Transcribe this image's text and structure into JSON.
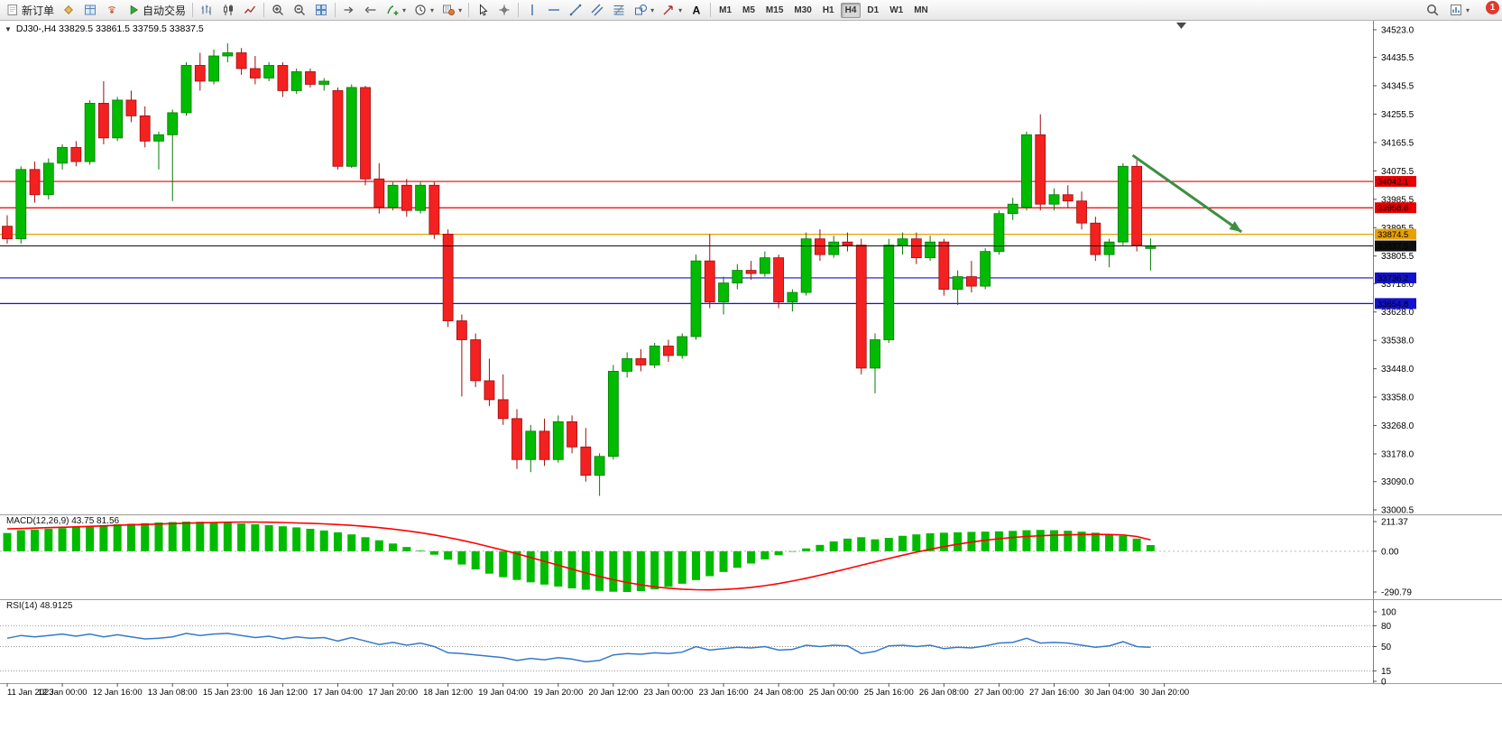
{
  "toolbar": {
    "notification_badge": "1",
    "timeframes": [
      "M1",
      "M5",
      "M15",
      "M30",
      "H1",
      "H4",
      "D1",
      "W1",
      "MN"
    ],
    "active_timeframe": "H4",
    "items": [
      {
        "name": "new-order-button",
        "icon": "doc",
        "label": "新订单"
      },
      {
        "name": "market-depth-button",
        "icon": "gold"
      },
      {
        "name": "market-watch-button",
        "icon": "gridblue"
      },
      {
        "name": "signals-button",
        "icon": "signal"
      },
      {
        "name": "autotrading-button",
        "icon": "play",
        "label": "自动交易"
      },
      {
        "type": "sep"
      },
      {
        "name": "bar-chart-button",
        "icon": "bars"
      },
      {
        "name": "candlestick-chart-button",
        "icon": "candles"
      },
      {
        "name": "line-chart-button",
        "icon": "linec"
      },
      {
        "type": "sep"
      },
      {
        "name": "zoom-in-button",
        "icon": "zoomin"
      },
      {
        "name": "zoom-out-button",
        "icon": "zoomout"
      },
      {
        "name": "tile-windows-button",
        "icon": "tile"
      },
      {
        "type": "sep"
      },
      {
        "name": "auto-scroll-button",
        "icon": "autoscroll"
      },
      {
        "name": "chart-shift-button",
        "icon": "shift"
      },
      {
        "name": "indicators-button",
        "icon": "findicator",
        "caret": true
      },
      {
        "name": "periods-button",
        "icon": "clock",
        "caret": true
      },
      {
        "name": "templates-button",
        "icon": "template",
        "caret": true
      },
      {
        "type": "sep"
      },
      {
        "name": "cursor-button",
        "icon": "cursor"
      },
      {
        "name": "crosshair-button",
        "icon": "cross"
      },
      {
        "type": "sep"
      },
      {
        "name": "vertical-line-button",
        "icon": "vline"
      },
      {
        "name": "horizontal-line-button",
        "icon": "hline"
      },
      {
        "name": "trendline-button",
        "icon": "tline"
      },
      {
        "name": "equidistant-channel-button",
        "icon": "channel"
      },
      {
        "name": "fibonacci-button",
        "icon": "fibo"
      },
      {
        "name": "shapes-button",
        "icon": "shapes",
        "caret": true
      },
      {
        "name": "arrows-button",
        "icon": "arrow",
        "caret": true
      },
      {
        "name": "text-label-button",
        "icon": "textA"
      },
      {
        "type": "sep"
      }
    ],
    "right_items": [
      {
        "name": "search-button",
        "icon": "search"
      },
      {
        "name": "new-chart-button",
        "icon": "newchart",
        "caret": true
      }
    ]
  },
  "chart": {
    "title": "DJ30-,H4 33829.5 33861.5 33759.5 33837.5",
    "price_axis_labels": [
      "34523.0",
      "34435.5",
      "34345.5",
      "34255.5",
      "34165.5",
      "34075.5",
      "33985.5",
      "33895.5",
      "33805.5",
      "33718.0",
      "33628.0",
      "33538.0",
      "33448.0",
      "33358.0",
      "33268.0",
      "33178.0",
      "33090.0",
      "33000.5"
    ],
    "levels": [
      {
        "value": 34042.1,
        "badge": "34042.1",
        "color": "#e60000"
      },
      {
        "value": 33958.6,
        "badge": "33958.6",
        "color": "#e60000"
      },
      {
        "value": 33874.5,
        "badge": "33874.5",
        "color": "#e8a000"
      },
      {
        "value": 33736.2,
        "badge": "33736.2",
        "color": "#1212cc"
      },
      {
        "value": 33654.8,
        "badge": "33654.8",
        "color": "#1212cc"
      }
    ],
    "current_price": {
      "value": 33837.5,
      "badge": "33837.5",
      "color": "#101010"
    },
    "annotation_arrow": {
      "color": "#3e8e41",
      "from_index": 81.7,
      "from_price": 34125,
      "to_index": 89.6,
      "to_price": 33882
    }
  },
  "chart_data": {
    "type": "candlestick",
    "symbol": "DJ30-",
    "timeframe": "H4",
    "price_range": [
      33000.5,
      34523.0
    ],
    "up_color": "#00bb00",
    "up_stroke": "#057a05",
    "down_color": "#f42121",
    "down_stroke": "#9e0d0d",
    "x_label_step": 4,
    "x_labels": [
      "11 Jan 2023",
      "12 Jan 00:00",
      "12 Jan 16:00",
      "13 Jan 08:00",
      "15 Jan 23:00",
      "16 Jan 12:00",
      "17 Jan 04:00",
      "17 Jan 20:00",
      "18 Jan 12:00",
      "19 Jan 04:00",
      "19 Jan 20:00",
      "20 Jan 12:00",
      "23 Jan 00:00",
      "23 Jan 16:00",
      "24 Jan 08:00",
      "25 Jan 00:00",
      "25 Jan 16:00",
      "26 Jan 08:00",
      "27 Jan 00:00",
      "27 Jan 16:00",
      "30 Jan 04:00",
      "30 Jan 20:00"
    ],
    "candles": [
      [
        33900,
        33935,
        33845,
        33860
      ],
      [
        33860,
        34090,
        33845,
        34080
      ],
      [
        34080,
        34105,
        33975,
        34000
      ],
      [
        34000,
        34115,
        33985,
        34100
      ],
      [
        34100,
        34160,
        34080,
        34150
      ],
      [
        34150,
        34170,
        34090,
        34105
      ],
      [
        34105,
        34300,
        34095,
        34290
      ],
      [
        34290,
        34360,
        34160,
        34180
      ],
      [
        34180,
        34310,
        34170,
        34300
      ],
      [
        34300,
        34330,
        34230,
        34250
      ],
      [
        34250,
        34280,
        34150,
        34170
      ],
      [
        34170,
        34200,
        34080,
        34190
      ],
      [
        34190,
        34270,
        33980,
        34260
      ],
      [
        34260,
        34420,
        34250,
        34410
      ],
      [
        34410,
        34450,
        34330,
        34360
      ],
      [
        34360,
        34460,
        34350,
        34440
      ],
      [
        34440,
        34480,
        34420,
        34450
      ],
      [
        34450,
        34465,
        34380,
        34400
      ],
      [
        34400,
        34440,
        34350,
        34370
      ],
      [
        34370,
        34420,
        34360,
        34410
      ],
      [
        34410,
        34420,
        34310,
        34330
      ],
      [
        34330,
        34400,
        34320,
        34390
      ],
      [
        34390,
        34400,
        34340,
        34350
      ],
      [
        34350,
        34370,
        34330,
        34360
      ],
      [
        34330,
        34340,
        34080,
        34090
      ],
      [
        34090,
        34350,
        34085,
        34340
      ],
      [
        34340,
        34345,
        34030,
        34050
      ],
      [
        34050,
        34100,
        33940,
        33960
      ],
      [
        33960,
        34040,
        33950,
        34030
      ],
      [
        34030,
        34050,
        33930,
        33950
      ],
      [
        33950,
        34040,
        33940,
        34030
      ],
      [
        34030,
        34040,
        33860,
        33875
      ],
      [
        33875,
        33890,
        33580,
        33600
      ],
      [
        33600,
        33620,
        33360,
        33540
      ],
      [
        33540,
        33560,
        33390,
        33410
      ],
      [
        33410,
        33480,
        33330,
        33350
      ],
      [
        33350,
        33430,
        33270,
        33290
      ],
      [
        33290,
        33320,
        33130,
        33160
      ],
      [
        33160,
        33270,
        33120,
        33250
      ],
      [
        33250,
        33290,
        33140,
        33160
      ],
      [
        33160,
        33300,
        33150,
        33280
      ],
      [
        33280,
        33300,
        33180,
        33200
      ],
      [
        33200,
        33260,
        33090,
        33110
      ],
      [
        33110,
        33180,
        33045,
        33170
      ],
      [
        33170,
        33460,
        33160,
        33440
      ],
      [
        33440,
        33500,
        33420,
        33480
      ],
      [
        33480,
        33510,
        33440,
        33460
      ],
      [
        33460,
        33530,
        33450,
        33520
      ],
      [
        33520,
        33540,
        33470,
        33490
      ],
      [
        33490,
        33560,
        33480,
        33550
      ],
      [
        33550,
        33810,
        33540,
        33790
      ],
      [
        33790,
        33875,
        33640,
        33660
      ],
      [
        33660,
        33740,
        33620,
        33720
      ],
      [
        33720,
        33780,
        33700,
        33760
      ],
      [
        33760,
        33790,
        33730,
        33750
      ],
      [
        33750,
        33820,
        33740,
        33800
      ],
      [
        33800,
        33810,
        33640,
        33660
      ],
      [
        33660,
        33700,
        33630,
        33690
      ],
      [
        33690,
        33880,
        33680,
        33860
      ],
      [
        33860,
        33890,
        33790,
        33810
      ],
      [
        33810,
        33870,
        33800,
        33850
      ],
      [
        33850,
        33880,
        33820,
        33840
      ],
      [
        33840,
        33860,
        33430,
        33450
      ],
      [
        33450,
        33560,
        33370,
        33540
      ],
      [
        33540,
        33860,
        33530,
        33840
      ],
      [
        33840,
        33880,
        33810,
        33860
      ],
      [
        33860,
        33880,
        33780,
        33800
      ],
      [
        33800,
        33870,
        33790,
        33850
      ],
      [
        33850,
        33860,
        33680,
        33700
      ],
      [
        33700,
        33760,
        33650,
        33740
      ],
      [
        33740,
        33790,
        33690,
        33710
      ],
      [
        33710,
        33830,
        33700,
        33820
      ],
      [
        33820,
        33950,
        33810,
        33940
      ],
      [
        33940,
        33990,
        33920,
        33970
      ],
      [
        33960,
        34200,
        33950,
        34190
      ],
      [
        34190,
        34255,
        33950,
        33970
      ],
      [
        33970,
        34020,
        33950,
        34000
      ],
      [
        34000,
        34030,
        33960,
        33980
      ],
      [
        33980,
        34010,
        33890,
        33910
      ],
      [
        33910,
        33930,
        33790,
        33810
      ],
      [
        33810,
        33860,
        33770,
        33850
      ],
      [
        33850,
        34100,
        33840,
        34090
      ],
      [
        34090,
        34110,
        33820,
        33840
      ],
      [
        33829.5,
        33861.5,
        33759.5,
        33837.5
      ]
    ],
    "indicators": [
      {
        "name": "MACD",
        "label": "MACD(12,26,9) 43.75 81.56",
        "axis": [
          "211.37",
          "0.00",
          "-290.79"
        ],
        "histogram_color": "#00bb00",
        "signal_color": "#ff0000",
        "histogram": [
          130,
          150,
          155,
          160,
          165,
          170,
          178,
          185,
          192,
          196,
          200,
          205,
          208,
          211.37,
          210,
          207,
          203,
          198,
          192,
          186,
          178,
          170,
          160,
          148,
          135,
          120,
          100,
          78,
          55,
          30,
          5,
          -25,
          -60,
          -95,
          -130,
          -160,
          -185,
          -205,
          -222,
          -238,
          -252,
          -265,
          -275,
          -283,
          -289,
          -290.79,
          -285,
          -272,
          -254,
          -232,
          -206,
          -178,
          -148,
          -118,
          -88,
          -58,
          -28,
          -2,
          20,
          45,
          70,
          90,
          100,
          85,
          95,
          110,
          120,
          128,
          132,
          135,
          138,
          140,
          142,
          145,
          150,
          152,
          150,
          146,
          140,
          132,
          122,
          110,
          90,
          43.75
        ],
        "signal": [
          160,
          162,
          165,
          168,
          171,
          174,
          177,
          181,
          185,
          188,
          191,
          194,
          197,
          200,
          203,
          205,
          207,
          208,
          208,
          207,
          205,
          202,
          199,
          195,
          190,
          184,
          177,
          168,
          158,
          146,
          132,
          116,
          98,
          78,
          56,
          32,
          8,
          -18,
          -45,
          -72,
          -100,
          -128,
          -155,
          -180,
          -203,
          -223,
          -240,
          -254,
          -264,
          -271,
          -275,
          -276,
          -273,
          -267,
          -258,
          -246,
          -231,
          -213,
          -193,
          -171,
          -148,
          -124,
          -100,
          -76,
          -52,
          -29,
          -7,
          14,
          33,
          50,
          65,
          78,
          89,
          98,
          105,
          110,
          114,
          117,
          119,
          120,
          119,
          116,
          105,
          81.56
        ]
      },
      {
        "name": "RSI",
        "label": "RSI(14) 48.9125",
        "axis": [
          "100",
          "80",
          "50",
          "15",
          "0"
        ],
        "levels": [
          80,
          50,
          15
        ],
        "line_color": "#3579c8",
        "values": [
          62,
          66,
          64,
          66,
          68,
          65,
          68,
          64,
          67,
          64,
          61,
          62,
          64,
          69,
          66,
          68,
          69,
          66,
          63,
          65,
          61,
          64,
          62,
          63,
          58,
          63,
          58,
          53,
          56,
          52,
          55,
          50,
          41,
          40,
          38,
          36,
          34,
          30,
          33,
          31,
          34,
          32,
          28,
          30,
          38,
          40,
          39,
          41,
          40,
          42,
          50,
          45,
          47,
          49,
          48,
          50,
          45,
          46,
          52,
          50,
          52,
          51,
          40,
          43,
          51,
          52,
          50,
          52,
          47,
          49,
          48,
          51,
          55,
          56,
          62,
          55,
          56,
          55,
          52,
          49,
          51,
          57,
          50,
          48.91
        ]
      }
    ]
  }
}
